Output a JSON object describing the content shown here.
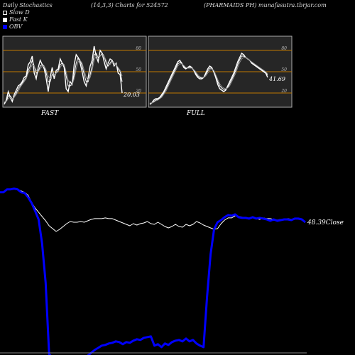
{
  "header": {
    "left": "Daily Stochastics",
    "middle": "(14,3,3) Charts for 524572",
    "right": "(PHARMAIDS PH) munafasutra.tbrjar.com"
  },
  "legend": [
    {
      "label": "Slow  D",
      "color": "#ffffff",
      "style": "outline"
    },
    {
      "label": "Fast K",
      "color": "#ffffff",
      "style": "filled"
    },
    {
      "label": "OBV",
      "color": "#0000ff",
      "style": "filled"
    }
  ],
  "chart_data": [
    {
      "type": "line",
      "name": "FAST",
      "title": "FAST",
      "ylim": [
        0,
        100
      ],
      "levels": [
        20,
        50,
        80
      ],
      "level_labels": [
        "20",
        "50",
        "80"
      ],
      "last_value_label": "20.03",
      "x": [
        1,
        2,
        3,
        4,
        5,
        6,
        7,
        8,
        9,
        10,
        11,
        12,
        13,
        14,
        15,
        16,
        17,
        18,
        19,
        20,
        21,
        22,
        23,
        24,
        25,
        26,
        27,
        28,
        29,
        30,
        31,
        32,
        33,
        34,
        35,
        36,
        37,
        38,
        39,
        40,
        41,
        42,
        43,
        44,
        45,
        46,
        47,
        48,
        49,
        50,
        51,
        52,
        53,
        54,
        55,
        56,
        57,
        58,
        59,
        60
      ],
      "series": [
        {
          "values": [
            4,
            10,
            22,
            14,
            8,
            18,
            24,
            30,
            32,
            36,
            42,
            44,
            60,
            64,
            72,
            48,
            40,
            56,
            66,
            60,
            54,
            40,
            22,
            42,
            56,
            40,
            52,
            54,
            68,
            62,
            56,
            26,
            22,
            36,
            32,
            60,
            74,
            70,
            62,
            50,
            36,
            30,
            42,
            58,
            66,
            86,
            72,
            64,
            80,
            76,
            64,
            54,
            62,
            68,
            66,
            58,
            62,
            48,
            46,
            20
          ],
          "color": "#ffffff",
          "width": 1.4
        },
        {
          "values": [
            6,
            8,
            16,
            16,
            12,
            14,
            20,
            26,
            30,
            34,
            38,
            42,
            52,
            58,
            66,
            58,
            48,
            50,
            58,
            60,
            58,
            48,
            36,
            36,
            46,
            46,
            48,
            52,
            60,
            62,
            60,
            44,
            30,
            30,
            32,
            46,
            62,
            70,
            66,
            58,
            46,
            36,
            36,
            46,
            58,
            74,
            76,
            70,
            72,
            76,
            72,
            62,
            58,
            62,
            66,
            62,
            60,
            54,
            50,
            36
          ],
          "color": "#ffffff",
          "width": 1.0
        },
        {
          "values": [
            8,
            8,
            12,
            14,
            12,
            14,
            18,
            22,
            28,
            32,
            36,
            40,
            48,
            54,
            60,
            58,
            52,
            50,
            54,
            58,
            58,
            52,
            44,
            40,
            44,
            46,
            48,
            50,
            56,
            60,
            60,
            50,
            38,
            32,
            32,
            40,
            54,
            64,
            66,
            62,
            52,
            42,
            38,
            42,
            52,
            66,
            72,
            72,
            72,
            74,
            72,
            66,
            60,
            60,
            64,
            62,
            60,
            56,
            52,
            44
          ],
          "color": "#888888",
          "width": 1.0
        }
      ]
    },
    {
      "type": "line",
      "name": "FULL",
      "title": "FULL",
      "ylim": [
        0,
        100
      ],
      "levels": [
        20,
        50,
        80
      ],
      "level_labels": [
        "20",
        "50",
        "80"
      ],
      "last_value_label": "41.69",
      "x": [
        1,
        2,
        3,
        4,
        5,
        6,
        7,
        8,
        9,
        10,
        11,
        12,
        13,
        14,
        15,
        16,
        17,
        18,
        19,
        20,
        21,
        22,
        23,
        24,
        25,
        26,
        27,
        28,
        29,
        30,
        31,
        32,
        33,
        34,
        35,
        36,
        37,
        38,
        39,
        40,
        41,
        42,
        43,
        44,
        45,
        46,
        47,
        48,
        49,
        50,
        51,
        52,
        53,
        54,
        55,
        56,
        57,
        58,
        59,
        60
      ],
      "series": [
        {
          "values": [
            4,
            6,
            10,
            12,
            12,
            14,
            18,
            22,
            28,
            34,
            40,
            46,
            52,
            58,
            64,
            66,
            62,
            56,
            54,
            56,
            58,
            56,
            52,
            46,
            42,
            40,
            40,
            42,
            48,
            54,
            58,
            56,
            50,
            42,
            32,
            26,
            24,
            22,
            24,
            30,
            36,
            42,
            48,
            56,
            64,
            70,
            76,
            74,
            70,
            68,
            66,
            62,
            60,
            58,
            56,
            54,
            52,
            50,
            48,
            42
          ],
          "color": "#ffffff",
          "width": 1.4
        },
        {
          "values": [
            5,
            6,
            8,
            10,
            11,
            13,
            16,
            20,
            25,
            31,
            37,
            43,
            49,
            55,
            61,
            63,
            62,
            58,
            55,
            55,
            56,
            55,
            52,
            48,
            44,
            42,
            41,
            42,
            46,
            51,
            55,
            55,
            51,
            44,
            36,
            30,
            27,
            25,
            25,
            28,
            33,
            39,
            45,
            52,
            60,
            67,
            72,
            72,
            70,
            68,
            66,
            63,
            61,
            59,
            57,
            55,
            53,
            51,
            49,
            45
          ],
          "color": "#ffffff",
          "width": 1.0
        },
        {
          "values": [
            6,
            6,
            7,
            9,
            10,
            12,
            14,
            18,
            22,
            28,
            34,
            40,
            46,
            52,
            58,
            61,
            61,
            59,
            56,
            55,
            55,
            55,
            53,
            50,
            46,
            43,
            42,
            42,
            44,
            48,
            52,
            54,
            52,
            46,
            39,
            33,
            29,
            27,
            26,
            27,
            30,
            36,
            42,
            48,
            56,
            63,
            68,
            70,
            70,
            68,
            66,
            64,
            62,
            60,
            58,
            56,
            54,
            52,
            50,
            47
          ],
          "color": "#888888",
          "width": 1.0
        }
      ]
    },
    {
      "type": "line",
      "name": "Price and OBV",
      "x": [
        1,
        2,
        3,
        4,
        5,
        6,
        7,
        8,
        9,
        10,
        11,
        12,
        13,
        14,
        15,
        16,
        17,
        18,
        19,
        20,
        21,
        22,
        23,
        24,
        25,
        26,
        27,
        28,
        29,
        30,
        31,
        32,
        33,
        34,
        35,
        36,
        37,
        38,
        39,
        40,
        41,
        42,
        43,
        44,
        45,
        46,
        47,
        48,
        49,
        50,
        51,
        52,
        53,
        54,
        55,
        56,
        57,
        58,
        59,
        60,
        61,
        62,
        63,
        64,
        65,
        66,
        67,
        68,
        69,
        70,
        71,
        72,
        73,
        74,
        75,
        76,
        77,
        78,
        79,
        80,
        81,
        82,
        83,
        84,
        85,
        86,
        87,
        88
      ],
      "last_value_label": "48.39Close",
      "series": [
        {
          "values": [
            47,
            47,
            51,
            51,
            52,
            51,
            49,
            47,
            43,
            33,
            25,
            19,
            13,
            7,
            0,
            -4,
            -8,
            -5,
            -1,
            3,
            6,
            5,
            5,
            6,
            5,
            7,
            9,
            10,
            10,
            10,
            11,
            10,
            10,
            8,
            6,
            4,
            2,
            0,
            3,
            1,
            3,
            4,
            6,
            3,
            2,
            5,
            2,
            -1,
            -3,
            -1,
            2,
            -1,
            -2,
            2,
            0,
            2,
            6,
            4,
            1,
            -1,
            -3,
            -5,
            -4,
            3,
            8,
            11,
            11,
            14,
            13,
            12,
            11,
            10,
            11,
            10,
            9,
            11,
            10,
            10,
            9,
            8,
            9,
            9,
            10,
            9,
            10,
            10,
            8,
            5
          ],
          "color": "#ffffff",
          "width": 1.0
        },
        {
          "values": [
            47,
            47,
            51,
            51,
            52,
            51,
            47,
            46,
            40,
            32,
            21,
            9,
            -25,
            -80,
            -180,
            -185,
            -188,
            -190,
            -188,
            -186,
            -187,
            -185,
            -184,
            -183,
            -186,
            -182,
            -178,
            -174,
            -171,
            -168,
            -167,
            -165,
            -164,
            -162,
            -163,
            -166,
            -163,
            -164,
            -161,
            -159,
            -160,
            -157,
            -156,
            -155,
            -168,
            -166,
            -170,
            -165,
            -167,
            -163,
            -161,
            -160,
            -162,
            -158,
            -162,
            -160,
            -165,
            -168,
            -170,
            -100,
            -40,
            -5,
            5,
            8,
            12,
            15,
            14,
            16,
            12,
            11,
            11,
            10,
            12,
            10,
            11,
            10,
            9,
            7,
            9,
            7,
            8,
            9,
            9,
            8,
            10,
            10,
            9,
            5
          ],
          "color": "#0000ff",
          "width": 3.0
        }
      ]
    }
  ]
}
